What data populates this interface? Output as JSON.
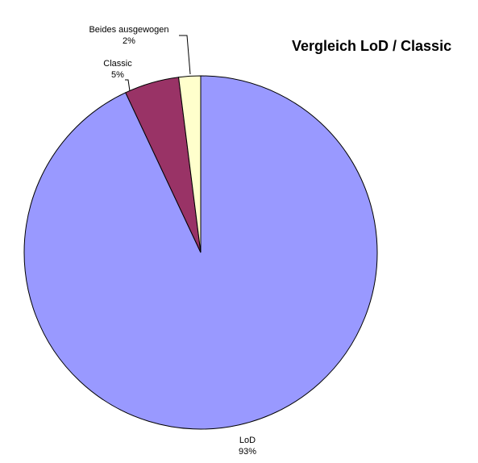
{
  "chart_data": {
    "type": "pie",
    "title": "Vergleich LoD / Classic",
    "slices": [
      {
        "label": "LoD",
        "value": 93,
        "value_label": "93%",
        "color": "#9999ff"
      },
      {
        "label": "Classic",
        "value": 5,
        "value_label": "5%",
        "color": "#993366"
      },
      {
        "label": "Beides ausgewogen",
        "value": 2,
        "value_label": "2%",
        "color": "#ffffcc"
      }
    ],
    "start_angle": "12 o'clock",
    "direction": "clockwise",
    "legend": "none",
    "outline_color": "#000000"
  }
}
